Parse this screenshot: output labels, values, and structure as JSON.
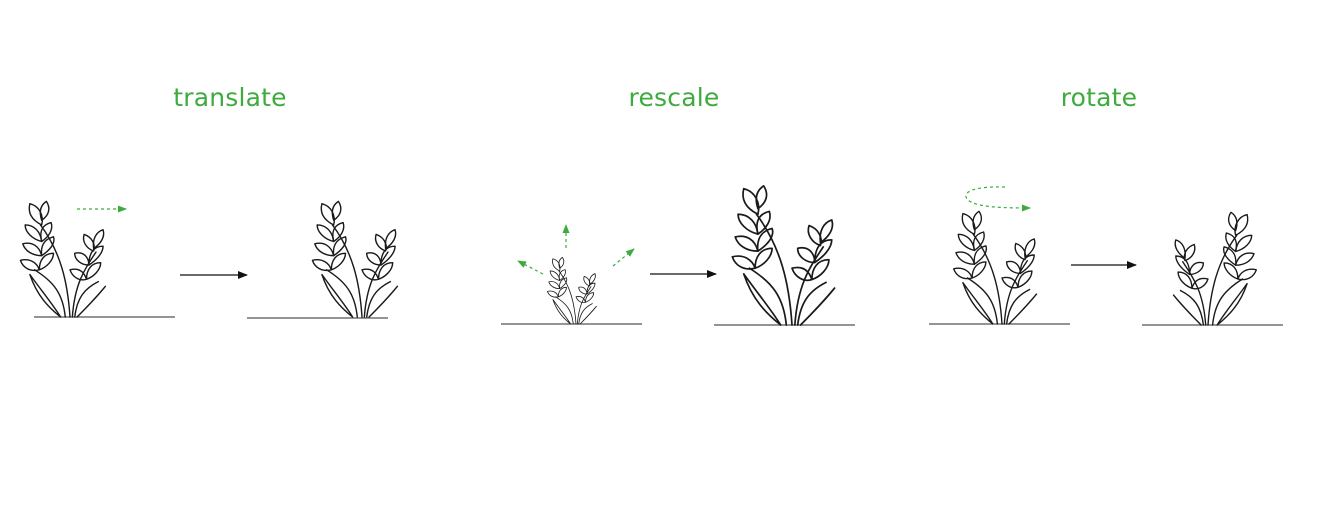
{
  "labels": {
    "translate": "translate",
    "rescale": "rescale",
    "rotate": "rotate"
  },
  "colors": {
    "label": "#3dab3d",
    "motion_arrow": "#3dab3d",
    "line": "#1a1a1a",
    "ground": "#555555"
  },
  "icons": {
    "plant": "wheat-plant-icon",
    "transition": "right-arrow-icon",
    "motion": "dashed-motion-arrow-icon"
  }
}
